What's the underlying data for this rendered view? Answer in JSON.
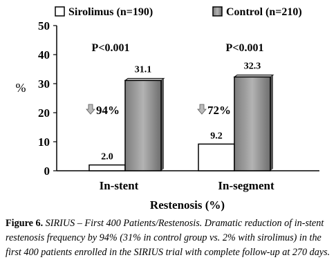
{
  "chart_data": {
    "type": "bar",
    "categories": [
      "In-stent",
      "In-segment"
    ],
    "series": [
      {
        "name": "Sirolimus (n=190)",
        "values": [
          2.0,
          9.2
        ],
        "color": "#ffffff"
      },
      {
        "name": "Control (n=210)",
        "values": [
          31.1,
          32.3
        ],
        "color": "#9a9a9a"
      }
    ],
    "data_labels": [
      [
        "2.0",
        "9.2"
      ],
      [
        "31.1",
        "32.3"
      ]
    ],
    "ylim": [
      0,
      50
    ],
    "yticks": [
      0,
      10,
      20,
      30,
      40,
      50
    ],
    "ylabel": "%",
    "xlabel": "Restenosis (%)",
    "legend_position": "top",
    "grid": false,
    "annotations": {
      "p_values": [
        "P<0.001",
        "P<0.001"
      ],
      "reductions": [
        "94%",
        "72%"
      ]
    }
  },
  "caption": {
    "figure_number": "Figure 6.",
    "text": " SIRIUS – First 400 Patients/Restenosis. Dramatic reduction of in-stent restenosis frequency by 94% (31% in control group vs. 2% with sirolimus) in the first 400 patients enrolled in the SIRIUS trial with complete follow-up at 270 days."
  }
}
